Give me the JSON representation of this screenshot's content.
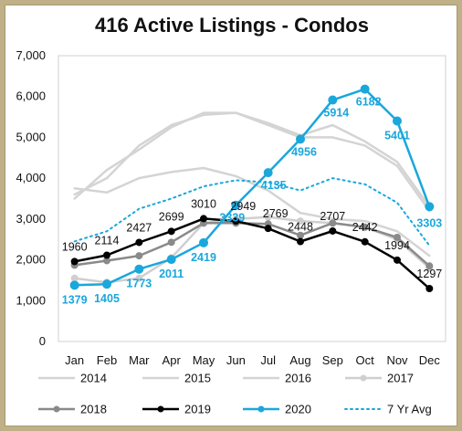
{
  "chart_data": {
    "type": "line",
    "title": "416 Active Listings - Condos",
    "xlabel": "",
    "ylabel": "",
    "categories": [
      "Jan",
      "Feb",
      "Mar",
      "Apr",
      "May",
      "Jun",
      "Jul",
      "Aug",
      "Sep",
      "Oct",
      "Nov",
      "Dec"
    ],
    "ylim": [
      0,
      7000
    ],
    "yticks": [
      "0",
      "1,000",
      "2,000",
      "3,000",
      "4,000",
      "5,000",
      "6,000",
      "7,000"
    ],
    "grid": false,
    "legend": "bottom",
    "series": [
      {
        "name": "2014",
        "color": "#d4d4d4",
        "width": 2.5,
        "marker": false,
        "dashed": false,
        "values": [
          3600,
          4000,
          4800,
          5300,
          5550,
          5600,
          5300,
          5000,
          5000,
          4800,
          4300,
          3200
        ]
      },
      {
        "name": "2015",
        "color": "#d4d4d4",
        "width": 2.5,
        "marker": false,
        "dashed": false,
        "values": [
          3500,
          4200,
          4700,
          5250,
          5600,
          5600,
          5350,
          5050,
          5300,
          4900,
          4400,
          3300
        ]
      },
      {
        "name": "2016",
        "color": "#d4d4d4",
        "width": 2.5,
        "marker": false,
        "dashed": false,
        "values": [
          3750,
          3650,
          4000,
          4150,
          4250,
          4050,
          3700,
          3150,
          3000,
          2950,
          2700,
          2100
        ]
      },
      {
        "name": "2017",
        "color": "#cfcfcf",
        "width": 2.5,
        "marker": true,
        "dashed": false,
        "values": [
          1550,
          1450,
          1550,
          2050,
          2900,
          3000,
          3050,
          2950,
          2900,
          2800,
          2500,
          1800
        ]
      },
      {
        "name": "2018",
        "color": "#8a8a8a",
        "width": 2.5,
        "marker": true,
        "dashed": false,
        "values": [
          1870,
          1980,
          2100,
          2430,
          2900,
          2900,
          2880,
          2600,
          2900,
          2800,
          2550,
          1850
        ]
      },
      {
        "name": "2019",
        "color": "#000000",
        "width": 2.5,
        "marker": true,
        "dashed": false,
        "values": [
          1960,
          2114,
          2427,
          2699,
          3010,
          2949,
          2769,
          2448,
          2707,
          2442,
          1994,
          1297
        ],
        "labels": [
          "1960",
          "2114",
          "2427",
          "2699",
          "3010",
          "2949",
          "2769",
          "2448",
          "2707",
          "2442",
          "1994",
          "1297"
        ]
      },
      {
        "name": "2020",
        "color": "#1aa7dc",
        "width": 2.5,
        "marker": true,
        "dashed": false,
        "values": [
          1379,
          1405,
          1773,
          2011,
          2419,
          3339,
          4135,
          4956,
          5914,
          6182,
          5401,
          3303
        ],
        "labels": [
          "1379",
          "1405",
          "1773",
          "2011",
          "2419",
          "3339",
          "4135",
          "4956",
          "5914",
          "6182",
          "5401",
          "3303"
        ]
      },
      {
        "name": "7 Yr Avg",
        "color": "#1aa7dc",
        "width": 2,
        "marker": false,
        "dashed": true,
        "values": [
          2450,
          2700,
          3250,
          3500,
          3800,
          3950,
          3900,
          3700,
          4000,
          3850,
          3400,
          2350
        ]
      }
    ]
  }
}
